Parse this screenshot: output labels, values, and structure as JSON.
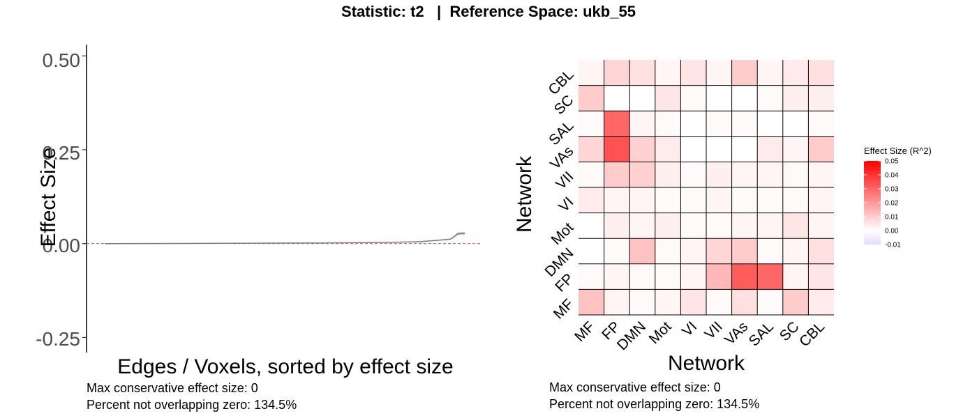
{
  "title": "Statistic: t2   |  Reference Space: ukb_55",
  "chart_data": [
    {
      "type": "line",
      "xlabel": "Edges / Voxels, sorted by effect size",
      "ylabel": "Effect Size",
      "y_ticks": [
        "0.50",
        "0.25",
        "0.00",
        "-0.25"
      ],
      "y_tick_values": [
        0.5,
        0.25,
        0.0,
        -0.25
      ],
      "ylim": [
        -0.29,
        0.53
      ],
      "reference_line": 0,
      "series": [
        {
          "x": [
            0,
            0.1,
            0.2,
            0.3,
            0.4,
            0.5,
            0.6,
            0.7,
            0.75,
            0.8,
            0.85,
            0.88,
            0.9,
            0.92,
            0.94,
            0.96,
            0.97,
            0.98,
            0.99,
            1.0
          ],
          "values": [
            0,
            0.0002,
            0.0004,
            0.0007,
            0.001,
            0.0014,
            0.0019,
            0.0026,
            0.003,
            0.0035,
            0.0045,
            0.0055,
            0.007,
            0.0085,
            0.01,
            0.012,
            0.018,
            0.026,
            0.027,
            0.027
          ]
        }
      ],
      "grid": false,
      "notes": [
        "Max conservative effect size: 0",
        "Percent not overlapping zero: 134.5%"
      ]
    },
    {
      "type": "heatmap",
      "xlabel": "Network",
      "ylabel": "Network",
      "x_categories": [
        "MF",
        "FP",
        "DMN",
        "Mot",
        "VI",
        "VII",
        "VAs",
        "SAL",
        "SC",
        "CBL"
      ],
      "y_categories_top_to_bottom": [
        "CBL",
        "SC",
        "SAL",
        "VAs",
        "VII",
        "VI",
        "Mot",
        "DMN",
        "FP",
        "MF"
      ],
      "values_top_to_bottom": [
        [
          0.002,
          0.008,
          0.006,
          0.002,
          0.005,
          0.002,
          0.01,
          0.002,
          0.004,
          0.006
        ],
        [
          0.01,
          0.0,
          0.0,
          0.005,
          0.001,
          0.0,
          0.0,
          0.001,
          0.003,
          0.003
        ],
        [
          0.001,
          0.03,
          0.002,
          0.001,
          0.0,
          0.001,
          0.001,
          0.0,
          0.0,
          0.001
        ],
        [
          0.008,
          0.034,
          0.009,
          0.004,
          0.0,
          0.0,
          0.0,
          0.004,
          0.002,
          0.01
        ],
        [
          0.001,
          0.01,
          0.009,
          0.003,
          0.001,
          0.003,
          0.002,
          0.002,
          0.001,
          0.002
        ],
        [
          0.004,
          0.002,
          0.002,
          0.001,
          0.001,
          0.002,
          0.001,
          0.001,
          0.001,
          0.002
        ],
        [
          0.0,
          0.003,
          0.002,
          0.003,
          0.001,
          0.001,
          0.002,
          0.002,
          0.005,
          0.002
        ],
        [
          0.0,
          0.001,
          0.012,
          0.001,
          0.002,
          0.008,
          0.01,
          0.001,
          0.002,
          0.006
        ],
        [
          0.001,
          0.002,
          0.001,
          0.001,
          0.002,
          0.014,
          0.032,
          0.03,
          0.002,
          0.005
        ],
        [
          0.012,
          0.002,
          0.001,
          0.002,
          0.005,
          0.001,
          0.006,
          0.001,
          0.01,
          0.004
        ]
      ],
      "legend": {
        "title": "Effect Size (R^2)",
        "ticks": [
          "0.05",
          "0.04",
          "0.03",
          "0.02",
          "0.01",
          "0.00",
          "-0.01"
        ],
        "tick_values": [
          0.05,
          0.04,
          0.03,
          0.02,
          0.01,
          0.0,
          -0.01
        ],
        "range": [
          -0.01,
          0.05
        ],
        "colors": {
          "high": "#ff0000",
          "mid": "#ffffff",
          "low": "#e6d9ff"
        },
        "placement": "right"
      },
      "notes": [
        "Max conservative effect size: 0",
        "Percent not overlapping zero: 134.5%"
      ]
    }
  ]
}
